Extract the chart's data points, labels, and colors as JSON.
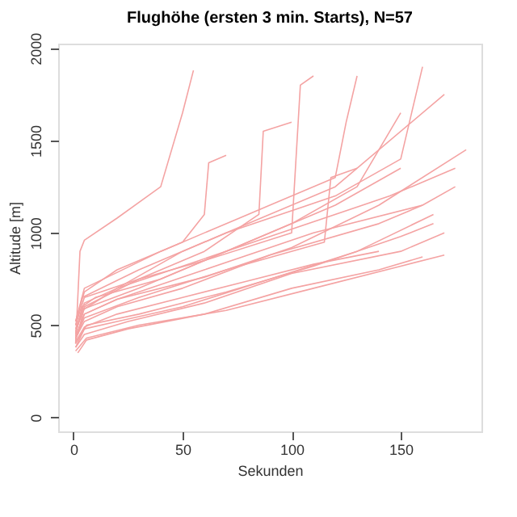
{
  "chart_data": {
    "type": "line",
    "title": "Flughöhe (ersten 3 min. Starts), N=57",
    "xlabel": "Sekunden",
    "ylabel": "Altitude [m]",
    "xlim": [
      -7,
      187
    ],
    "ylim": [
      -75,
      2025
    ],
    "xticks": [
      0,
      50,
      100,
      150
    ],
    "yticks": [
      0,
      500,
      1000,
      1500,
      2000
    ],
    "grid": false,
    "legend": false,
    "line_style": "solid",
    "marker": "none",
    "series": [
      {
        "color": "#f4a3a3",
        "x": [
          1,
          3,
          5,
          20,
          40,
          50,
          55
        ],
        "values": [
          400,
          900,
          960,
          1080,
          1250,
          1650,
          1880
        ]
      },
      {
        "color": "#f4a3a3",
        "x": [
          1,
          4,
          10,
          40,
          80,
          120,
          150
        ],
        "values": [
          450,
          600,
          650,
          750,
          950,
          1150,
          1350
        ]
      },
      {
        "color": "#f4a3a3",
        "x": [
          1,
          5,
          20,
          50,
          90,
          130,
          165
        ],
        "values": [
          380,
          480,
          520,
          600,
          750,
          900,
          1100
        ]
      },
      {
        "color": "#f4a3a3",
        "x": [
          1,
          5,
          30,
          60,
          100,
          104,
          110
        ],
        "values": [
          500,
          650,
          750,
          850,
          1000,
          1800,
          1850
        ]
      },
      {
        "color": "#f4a3a3",
        "x": [
          2,
          6,
          25,
          60,
          100,
          140,
          160
        ],
        "values": [
          350,
          420,
          480,
          560,
          700,
          800,
          870
        ]
      },
      {
        "color": "#f4a3a3",
        "x": [
          1,
          5,
          20,
          60,
          110,
          160,
          175
        ],
        "values": [
          420,
          560,
          640,
          800,
          1000,
          1150,
          1250
        ]
      },
      {
        "color": "#f4a3a3",
        "x": [
          1,
          4,
          20,
          50,
          80,
          120,
          170
        ],
        "values": [
          480,
          580,
          700,
          900,
          1050,
          1250,
          1750
        ]
      },
      {
        "color": "#f4a3a3",
        "x": [
          1,
          6,
          30,
          70,
          110,
          150,
          165
        ],
        "values": [
          400,
          500,
          560,
          680,
          820,
          980,
          1050
        ]
      },
      {
        "color": "#f4a3a3",
        "x": [
          1,
          5,
          40,
          80,
          120,
          125,
          130
        ],
        "values": [
          520,
          700,
          900,
          1100,
          1300,
          1600,
          1850
        ]
      },
      {
        "color": "#f4a3a3",
        "x": [
          1,
          5,
          20,
          50,
          90,
          140,
          160
        ],
        "values": [
          430,
          520,
          600,
          700,
          880,
          1050,
          1150
        ]
      },
      {
        "color": "#f4a3a3",
        "x": [
          2,
          5,
          30,
          60,
          85,
          87,
          100
        ],
        "values": [
          450,
          600,
          750,
          900,
          1100,
          1550,
          1600
        ]
      },
      {
        "color": "#f4a3a3",
        "x": [
          1,
          5,
          25,
          60,
          100,
          150,
          170
        ],
        "values": [
          380,
          450,
          520,
          620,
          780,
          900,
          1000
        ]
      },
      {
        "color": "#f4a3a3",
        "x": [
          1,
          5,
          20,
          50,
          95,
          145,
          175
        ],
        "values": [
          460,
          620,
          700,
          820,
          1000,
          1200,
          1350
        ]
      },
      {
        "color": "#f4a3a3",
        "x": [
          1,
          4,
          30,
          70,
          120,
          150,
          160
        ],
        "values": [
          500,
          650,
          800,
          1000,
          1200,
          1400,
          1900
        ]
      },
      {
        "color": "#f4a3a3",
        "x": [
          1,
          5,
          20,
          50,
          80,
          110,
          140
        ],
        "values": [
          410,
          490,
          560,
          650,
          740,
          830,
          900
        ]
      },
      {
        "color": "#f4a3a3",
        "x": [
          1,
          5,
          30,
          60,
          100,
          130,
          150
        ],
        "values": [
          470,
          590,
          700,
          850,
          1050,
          1250,
          1650
        ]
      },
      {
        "color": "#f4a3a3",
        "x": [
          1,
          6,
          30,
          70,
          110,
          150,
          170
        ],
        "values": [
          360,
          430,
          500,
          580,
          700,
          820,
          880
        ]
      },
      {
        "color": "#f4a3a3",
        "x": [
          1,
          5,
          20,
          60,
          100,
          140,
          180
        ],
        "values": [
          440,
          560,
          640,
          760,
          920,
          1150,
          1450
        ]
      },
      {
        "color": "#f4a3a3",
        "x": [
          1,
          5,
          20,
          50,
          60,
          62,
          70
        ],
        "values": [
          520,
          680,
          800,
          950,
          1100,
          1380,
          1420
        ]
      },
      {
        "color": "#f4a3a3",
        "x": [
          1,
          5,
          30,
          70,
          115,
          118,
          130
        ],
        "values": [
          430,
          540,
          650,
          800,
          950,
          1300,
          1350
        ]
      }
    ]
  }
}
